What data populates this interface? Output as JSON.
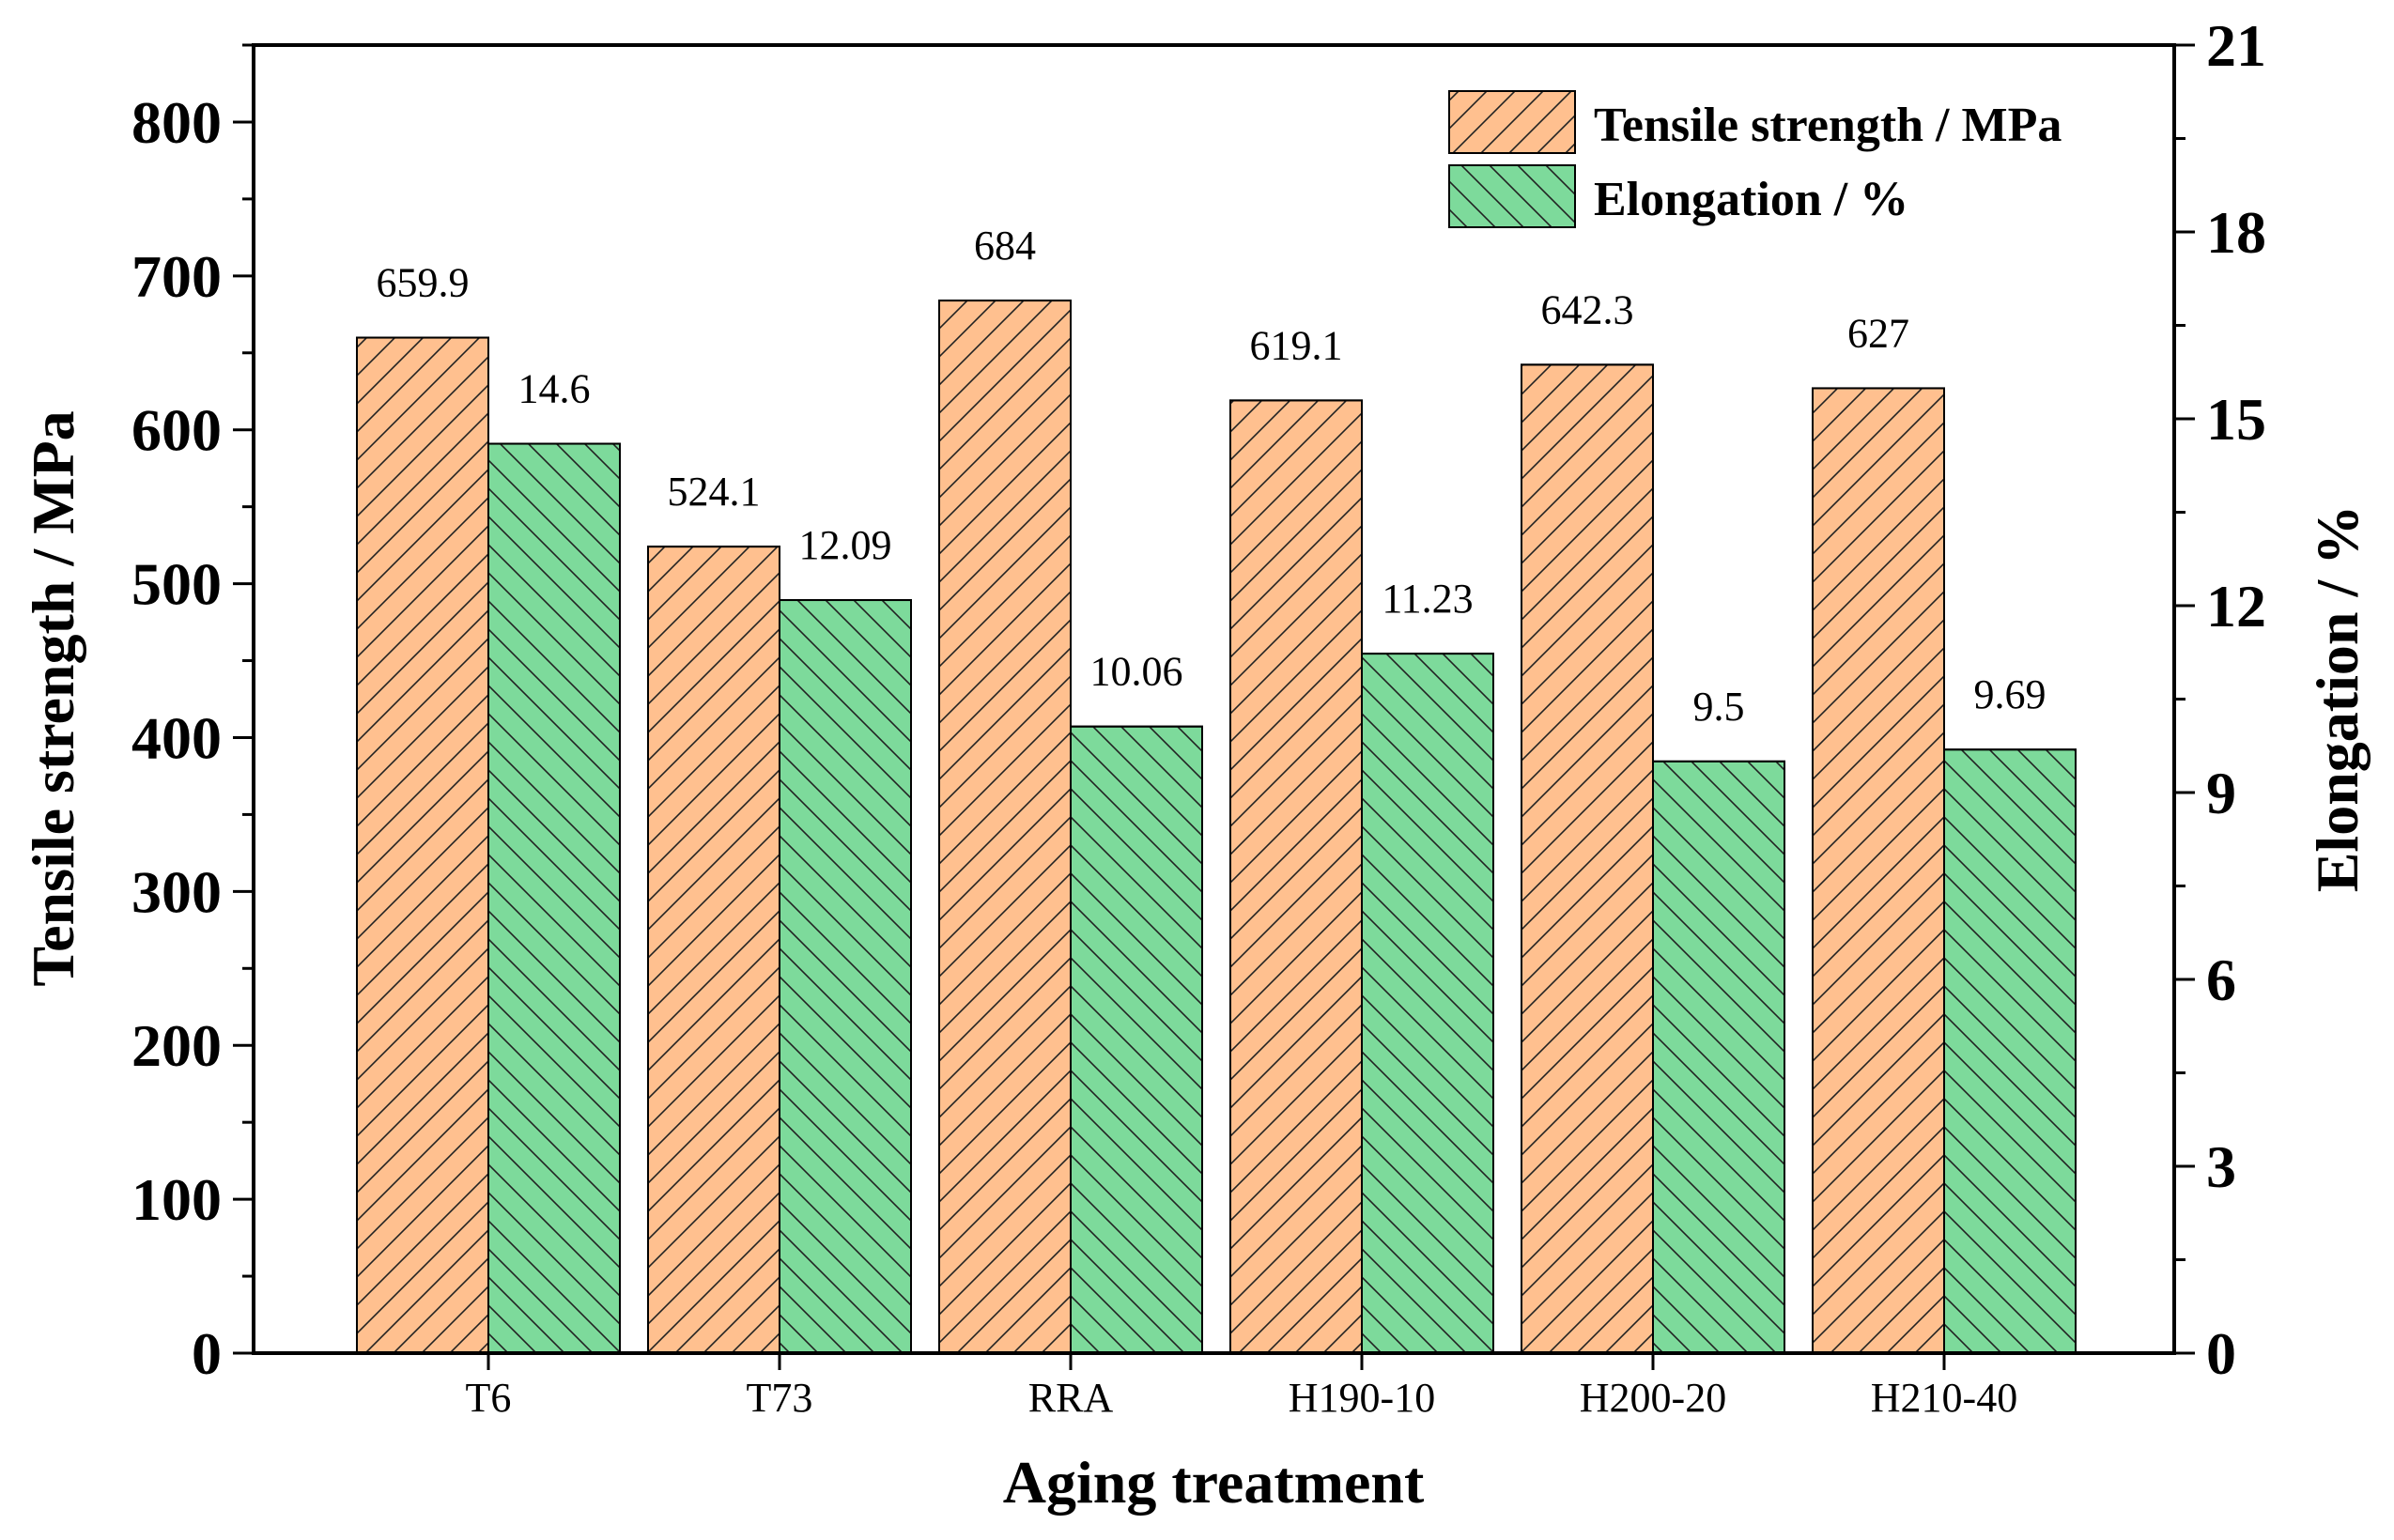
{
  "chart_data": {
    "type": "bar",
    "categories": [
      "T6",
      "T73",
      "RRA",
      "H190-10",
      "H200-20",
      "H210-40"
    ],
    "series": [
      {
        "name": "Tensile strength / MPa",
        "axis": "left",
        "values": [
          659.9,
          524.1,
          684,
          619.1,
          642.3,
          627
        ],
        "labels": [
          "659.9",
          "524.1",
          "684",
          "619.1",
          "642.3",
          "627"
        ],
        "color": "#FFC08F",
        "hatch": "forward-diagonal"
      },
      {
        "name": "Elongation / %",
        "axis": "right",
        "values": [
          14.6,
          12.09,
          10.06,
          11.23,
          9.5,
          9.69
        ],
        "labels": [
          "14.6",
          "12.09",
          "10.06",
          "11.23",
          "9.5",
          "9.69"
        ],
        "color": "#7DDA9B",
        "hatch": "back-diagonal"
      }
    ],
    "xlabel": "Aging treatment",
    "ylabel": "Tensile strength / MPa",
    "y2label": "Elongation / %",
    "ylim": [
      0,
      850
    ],
    "y2lim": [
      0,
      21
    ],
    "yticks": [
      0,
      100,
      200,
      300,
      400,
      500,
      600,
      700,
      800
    ],
    "y2ticks": [
      0,
      3,
      6,
      9,
      12,
      15,
      18,
      21
    ],
    "legend_position": "top-right",
    "grid": false
  }
}
